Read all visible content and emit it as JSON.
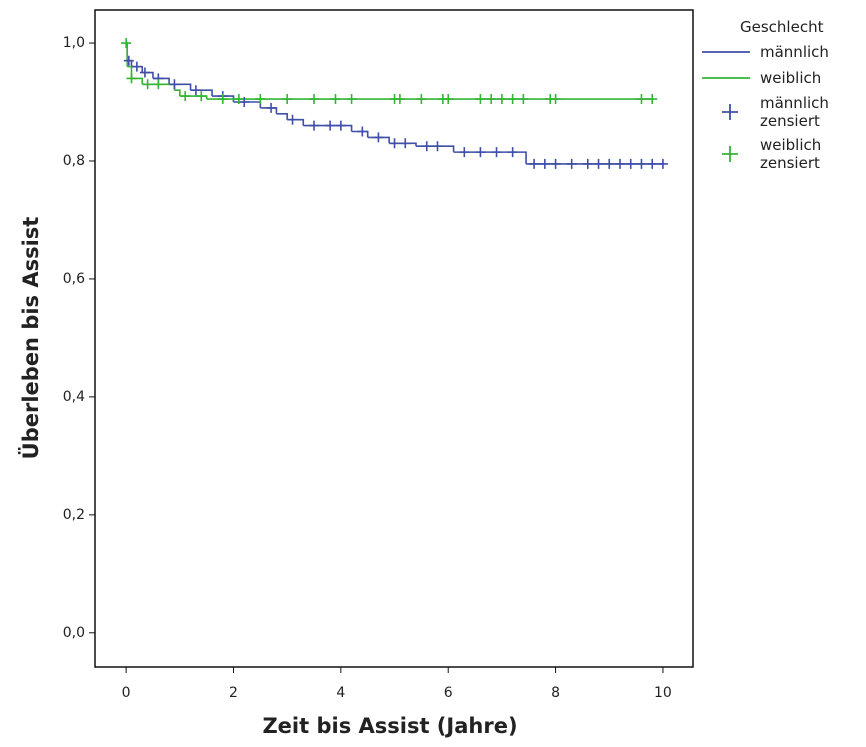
{
  "chart_data": {
    "type": "kaplan-meier",
    "x_label": "Zeit bis Assist (Jahre)",
    "y_label": "Überleben bis Assist",
    "legend_title": "Geschlecht",
    "legend": "right",
    "xlim": [
      -0.58,
      10.56
    ],
    "ylim": [
      -0.058,
      1.056
    ],
    "xticks": [
      0,
      2,
      4,
      6,
      8,
      10
    ],
    "yticks": [
      {
        "value": 0,
        "label": "0,0"
      },
      {
        "value": 0.2,
        "label": "0,2"
      },
      {
        "value": 0.4,
        "label": "0,4"
      },
      {
        "value": 0.6,
        "label": "0,6"
      },
      {
        "value": 0.8,
        "label": "0,8"
      },
      {
        "value": 1.0,
        "label": "1,0"
      }
    ],
    "series": [
      {
        "name": "männlich",
        "color": "#3f4fa8",
        "style": "step",
        "x": [
          0,
          0.02,
          0.1,
          0.3,
          0.5,
          0.8,
          1.2,
          1.6,
          2.0,
          2.5,
          2.8,
          3.0,
          3.3,
          4.2,
          4.5,
          4.9,
          5.4,
          6.1,
          7.45,
          10.0
        ],
        "values": [
          1.0,
          0.97,
          0.96,
          0.95,
          0.94,
          0.93,
          0.92,
          0.91,
          0.9,
          0.89,
          0.88,
          0.87,
          0.86,
          0.85,
          0.84,
          0.83,
          0.825,
          0.815,
          0.795,
          0.795
        ]
      },
      {
        "name": "weiblich",
        "color": "#33b534",
        "style": "step",
        "x": [
          0,
          0.02,
          0.1,
          0.3,
          0.9,
          1.0,
          1.5,
          9.8
        ],
        "values": [
          1.0,
          0.96,
          0.94,
          0.93,
          0.92,
          0.91,
          0.905,
          0.905
        ]
      },
      {
        "name": "männlich zensiert",
        "color": "#3f4fa8",
        "style": "plus",
        "x": [
          0.05,
          0.2,
          0.35,
          0.6,
          0.9,
          1.3,
          1.8,
          2.2,
          2.7,
          3.1,
          3.5,
          3.8,
          4.0,
          4.4,
          4.7,
          5.0,
          5.2,
          5.6,
          5.8,
          6.3,
          6.6,
          6.9,
          7.2,
          7.6,
          7.8,
          8.0,
          8.3,
          8.6,
          8.8,
          9.0,
          9.2,
          9.4,
          9.6,
          9.8,
          10.0
        ],
        "values": [
          0.97,
          0.96,
          0.95,
          0.94,
          0.93,
          0.92,
          0.91,
          0.9,
          0.89,
          0.87,
          0.86,
          0.86,
          0.86,
          0.85,
          0.84,
          0.83,
          0.83,
          0.825,
          0.825,
          0.815,
          0.815,
          0.815,
          0.815,
          0.795,
          0.795,
          0.795,
          0.795,
          0.795,
          0.795,
          0.795,
          0.795,
          0.795,
          0.795,
          0.795,
          0.795
        ]
      },
      {
        "name": "weiblich zensiert",
        "color": "#33b534",
        "style": "plus",
        "x": [
          0.0,
          0.1,
          0.4,
          0.6,
          1.1,
          1.4,
          1.8,
          2.1,
          2.5,
          3.0,
          3.5,
          3.9,
          4.2,
          5.0,
          5.1,
          5.5,
          5.9,
          6.0,
          6.6,
          6.8,
          7.0,
          7.2,
          7.4,
          7.9,
          8.0,
          9.6,
          9.8
        ],
        "values": [
          1.0,
          0.94,
          0.93,
          0.93,
          0.91,
          0.91,
          0.905,
          0.905,
          0.905,
          0.905,
          0.905,
          0.905,
          0.905,
          0.905,
          0.905,
          0.905,
          0.905,
          0.905,
          0.905,
          0.905,
          0.905,
          0.905,
          0.905,
          0.905,
          0.905,
          0.905,
          0.905
        ]
      }
    ]
  }
}
